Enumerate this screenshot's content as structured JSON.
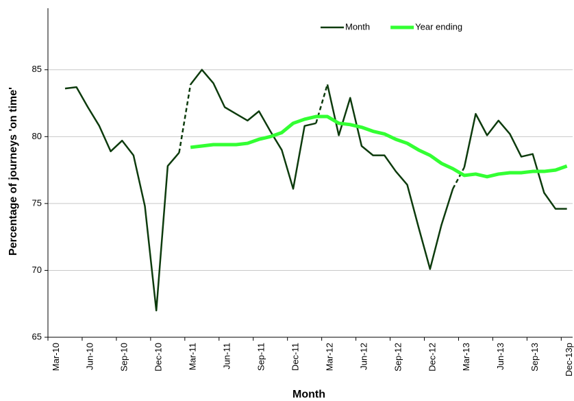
{
  "chart_data": {
    "type": "line",
    "y_label": "Percentage of journeys 'on time'",
    "x_label": "Month",
    "categories": [
      "Mar-10",
      null,
      null,
      "Jun-10",
      null,
      null,
      "Sep-10",
      null,
      null,
      "Dec-10",
      null,
      null,
      "Mar-11",
      null,
      null,
      "Jun-11",
      null,
      null,
      "Sep-11",
      null,
      null,
      "Dec-11",
      null,
      null,
      "Mar-12",
      null,
      null,
      "Jun-12",
      null,
      null,
      "Sep-12",
      null,
      null,
      "Dec-12",
      null,
      null,
      "Mar-13",
      null,
      null,
      "Jun-13",
      null,
      null,
      "Sep-13",
      null,
      null,
      "Dec-13p"
    ],
    "series": [
      {
        "name": "Month",
        "color": "#0d3b0d",
        "dashed_into": [
          12,
          24,
          36
        ],
        "values": [
          null,
          83.6,
          83.7,
          82.2,
          80.8,
          78.9,
          79.7,
          78.6,
          74.8,
          67.0,
          77.8,
          78.8,
          83.9,
          85.0,
          84.0,
          82.2,
          81.7,
          81.2,
          81.9,
          80.4,
          79.0,
          76.1,
          80.8,
          81.0,
          83.9,
          80.1,
          82.9,
          79.3,
          78.6,
          78.6,
          77.4,
          76.4,
          73.2,
          70.1,
          73.4,
          76.1,
          77.7,
          81.7,
          80.1,
          81.2,
          80.2,
          78.5,
          78.7,
          75.8,
          74.6,
          74.6
        ]
      },
      {
        "name": "Year ending",
        "color": "#33ff33",
        "values": [
          null,
          null,
          null,
          null,
          null,
          null,
          null,
          null,
          null,
          null,
          null,
          null,
          79.2,
          79.3,
          79.4,
          79.4,
          79.4,
          79.5,
          79.8,
          80.0,
          80.3,
          81.0,
          81.3,
          81.5,
          81.5,
          81.0,
          80.9,
          80.7,
          80.4,
          80.2,
          79.8,
          79.5,
          79.0,
          78.6,
          78.0,
          77.6,
          77.1,
          77.2,
          77.0,
          77.2,
          77.3,
          77.3,
          77.4,
          77.4,
          77.5,
          77.8
        ]
      }
    ],
    "ylim": [
      65,
      89.6
    ],
    "yticks": [
      65,
      70,
      75,
      80,
      85
    ],
    "grid": true,
    "legend": "top-right"
  }
}
